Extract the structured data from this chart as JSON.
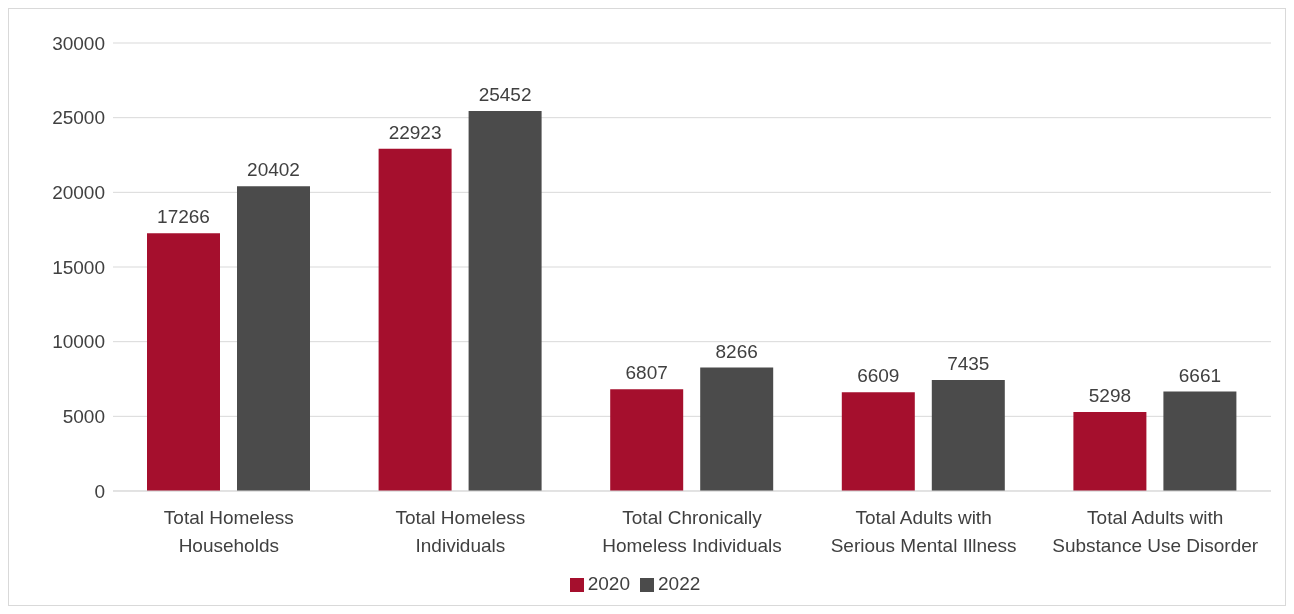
{
  "chart_data": {
    "type": "bar",
    "categories": [
      "Total Homeless Households",
      "Total Homeless Individuals",
      "Total Chronically Homeless Individuals",
      "Total Adults with Serious Mental Illness",
      "Total Adults with Substance Use Disorder"
    ],
    "series": [
      {
        "name": "2020",
        "color": "#a50f2d",
        "values": [
          17266,
          22923,
          6807,
          6609,
          5298
        ]
      },
      {
        "name": "2022",
        "color": "#4b4b4b",
        "values": [
          20402,
          25452,
          8266,
          7435,
          6661
        ]
      }
    ],
    "ylim": [
      0,
      30000
    ],
    "yticks": [
      0,
      5000,
      10000,
      15000,
      20000,
      25000,
      30000
    ],
    "grid": "y",
    "legend": "bottom",
    "data_labels": true
  }
}
